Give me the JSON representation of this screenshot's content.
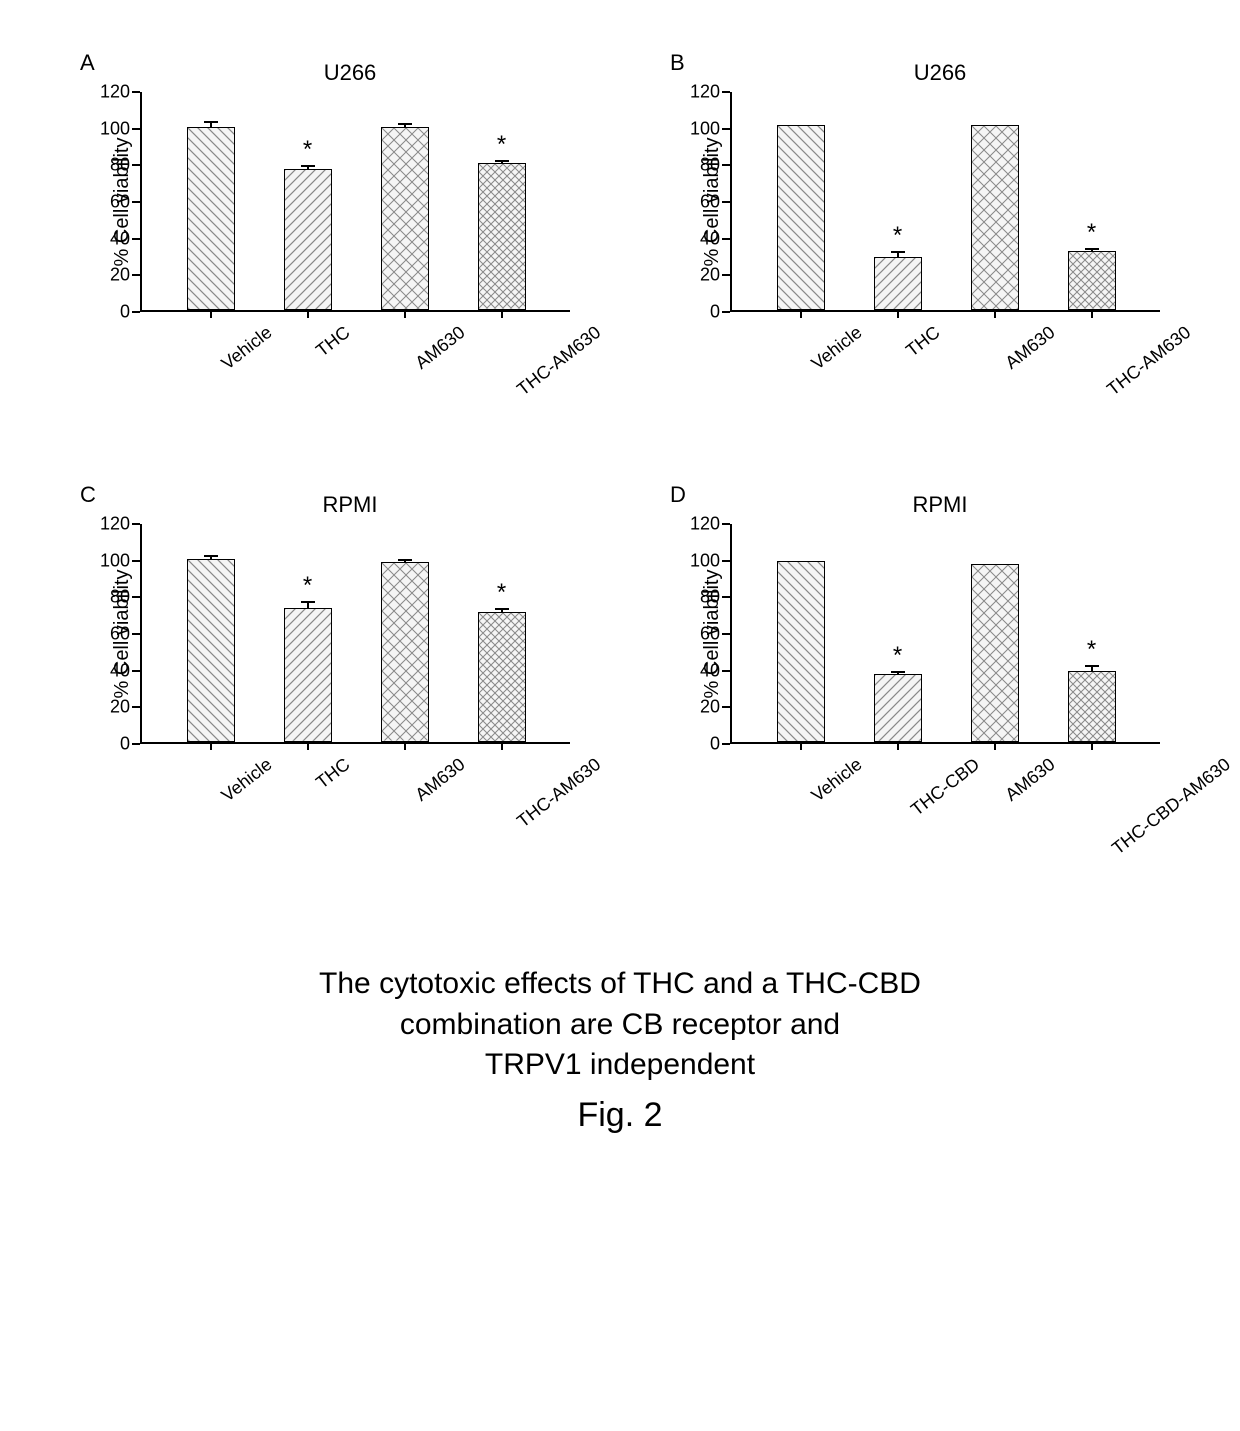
{
  "caption_line1": "The cytotoxic effects of THC and a THC-CBD",
  "caption_line2": "combination are CB receptor and",
  "caption_line3": "TRPV1 independent",
  "figure_label": "Fig. 2",
  "colors": {
    "axis": "#000000",
    "bar_fill": "#f2f2f2",
    "background": "#ffffff",
    "text": "#000000"
  },
  "panels": [
    {
      "letter": "A",
      "title": "U266",
      "ylabel": "% Cell viability",
      "ylim": [
        0,
        120
      ],
      "ytick_step": 20,
      "categories": [
        "Vehicle",
        "THC",
        "AM630",
        "THC-AM630"
      ],
      "values": [
        100,
        77,
        100,
        80
      ],
      "errors": [
        3,
        2,
        2,
        2
      ],
      "stars": [
        false,
        true,
        false,
        true
      ],
      "hatches": [
        "backslash",
        "slash",
        "cross",
        "crossdense"
      ]
    },
    {
      "letter": "B",
      "title": "U266",
      "ylabel": "% Cell viability",
      "ylim": [
        0,
        120
      ],
      "ytick_step": 20,
      "categories": [
        "Vehicle",
        "THC",
        "AM630",
        "THC-AM630"
      ],
      "values": [
        101,
        29,
        101,
        32
      ],
      "errors": [
        0,
        3,
        0,
        2
      ],
      "stars": [
        false,
        true,
        false,
        true
      ],
      "hatches": [
        "backslash",
        "slash",
        "cross",
        "crossdense"
      ]
    },
    {
      "letter": "C",
      "title": "RPMI",
      "ylabel": "% Cell viability",
      "ylim": [
        0,
        120
      ],
      "ytick_step": 20,
      "categories": [
        "Vehicle",
        "THC",
        "AM630",
        "THC-AM630"
      ],
      "values": [
        100,
        73,
        98,
        71
      ],
      "errors": [
        2,
        4,
        2,
        2
      ],
      "stars": [
        false,
        true,
        false,
        true
      ],
      "hatches": [
        "backslash",
        "slash",
        "cross",
        "crossdense"
      ]
    },
    {
      "letter": "D",
      "title": "RPMI",
      "ylabel": "% Cell viability",
      "ylim": [
        0,
        120
      ],
      "ytick_step": 20,
      "categories": [
        "Vehicle",
        "THC-CBD",
        "AM630",
        "THC-CBD-AM630"
      ],
      "values": [
        99,
        37,
        97,
        39
      ],
      "errors": [
        0,
        2,
        0,
        3
      ],
      "stars": [
        false,
        true,
        false,
        true
      ],
      "hatches": [
        "backslash",
        "slash",
        "cross",
        "crossdense"
      ]
    }
  ]
}
